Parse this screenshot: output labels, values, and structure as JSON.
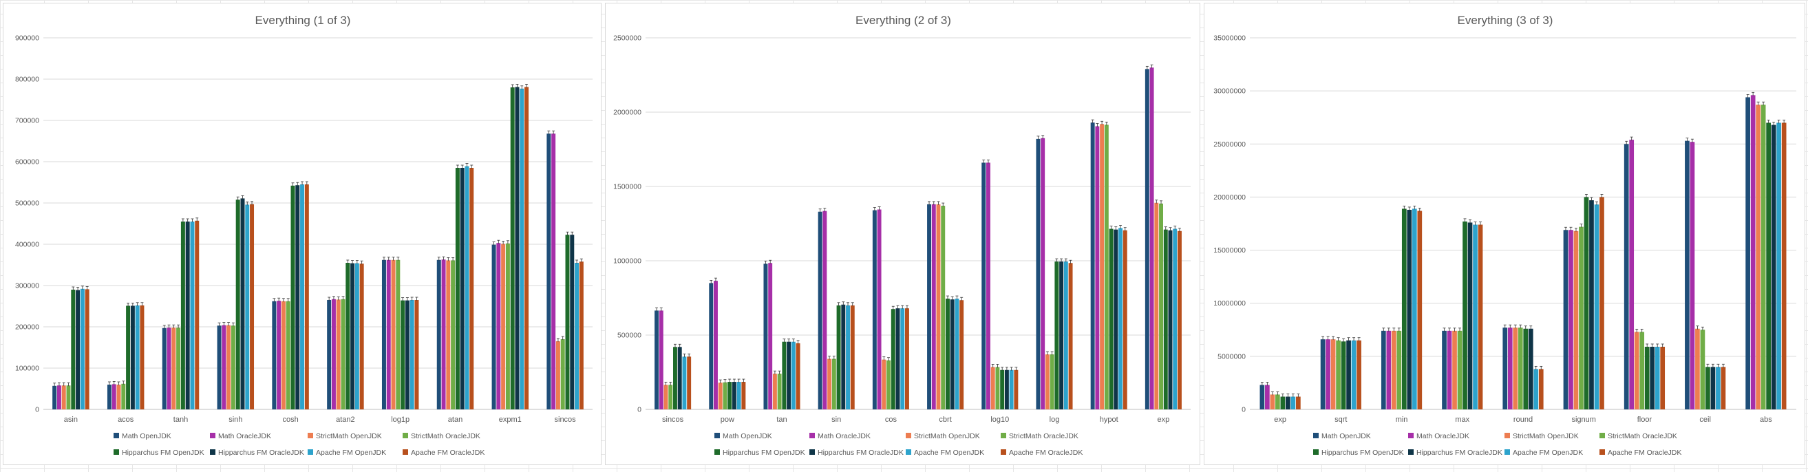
{
  "series_names": [
    "Math OpenJDK",
    "Math OracleJDK",
    "StrictMath OpenJDK",
    "StrictMath OracleJDK",
    "Hipparchus FM OpenJDK",
    "Hipparchus FM OracleJDK",
    "Apache FM OpenJDK",
    "Apache FM OracleJDK"
  ],
  "series_colors": [
    "#1f4e79",
    "#a62fa8",
    "#ed7d51",
    "#70ad47",
    "#1e6b2a",
    "#0f3548",
    "#2da3cc",
    "#b8501d"
  ],
  "chart_data": [
    {
      "type": "bar",
      "title": "Everything (1 of 3)",
      "xlabel": "",
      "ylabel": "",
      "ylim": [
        0,
        900000
      ],
      "yticks": [
        0,
        100000,
        200000,
        300000,
        400000,
        500000,
        600000,
        700000,
        800000,
        900000
      ],
      "grid": true,
      "legend": "bottom",
      "error_bars": true,
      "categories": [
        "asin",
        "acos",
        "tanh",
        "sinh",
        "cosh",
        "atan2",
        "log1p",
        "atan",
        "expm1",
        "sincos"
      ],
      "series": [
        {
          "name": "Math OpenJDK",
          "values": [
            57000,
            60000,
            197000,
            203000,
            262000,
            265000,
            362000,
            362000,
            399000,
            668000
          ]
        },
        {
          "name": "Math OracleJDK",
          "values": [
            58000,
            61000,
            198000,
            204000,
            263000,
            267000,
            362000,
            363000,
            403000,
            668000
          ]
        },
        {
          "name": "StrictMath OpenJDK",
          "values": [
            58000,
            60000,
            198000,
            204000,
            262000,
            266000,
            362000,
            361000,
            401000,
            165000
          ]
        },
        {
          "name": "StrictMath OracleJDK",
          "values": [
            58000,
            62000,
            198000,
            203000,
            262000,
            267000,
            362000,
            361000,
            402000,
            170000
          ]
        },
        {
          "name": "Hipparchus FM OpenJDK",
          "values": [
            290000,
            251000,
            455000,
            508000,
            542000,
            355000,
            264000,
            585000,
            780000,
            423000
          ]
        },
        {
          "name": "Hipparchus FM OracleJDK",
          "values": [
            289000,
            251000,
            455000,
            511000,
            543000,
            354000,
            264000,
            585000,
            781000,
            423000
          ]
        },
        {
          "name": "Apache FM OpenJDK",
          "values": [
            292000,
            252000,
            455000,
            496000,
            545000,
            354000,
            265000,
            589000,
            777000,
            355000
          ]
        },
        {
          "name": "Apache FM OracleJDK",
          "values": [
            291000,
            252000,
            457000,
            497000,
            545000,
            353000,
            265000,
            585000,
            781000,
            358000
          ]
        }
      ]
    },
    {
      "type": "bar",
      "title": "Everything (2 of 3)",
      "xlabel": "",
      "ylabel": "",
      "ylim": [
        0,
        2500000
      ],
      "yticks": [
        0,
        500000,
        1000000,
        1500000,
        2000000,
        2500000
      ],
      "grid": true,
      "legend": "bottom",
      "error_bars": true,
      "categories": [
        "sincos",
        "pow",
        "tan",
        "sin",
        "cos",
        "cbrt",
        "log10",
        "log",
        "hypot",
        "exp"
      ],
      "series": [
        {
          "name": "Math OpenJDK",
          "values": [
            665000,
            850000,
            980000,
            1330000,
            1340000,
            1380000,
            1660000,
            1820000,
            1930000,
            2290000
          ]
        },
        {
          "name": "Math OracleJDK",
          "values": [
            665000,
            865000,
            985000,
            1335000,
            1345000,
            1380000,
            1660000,
            1825000,
            1905000,
            2300000
          ]
        },
        {
          "name": "StrictMath OpenJDK",
          "values": [
            165000,
            180000,
            240000,
            340000,
            335000,
            1380000,
            285000,
            370000,
            1920000,
            1390000
          ]
        },
        {
          "name": "StrictMath OracleJDK",
          "values": [
            165000,
            182000,
            240000,
            340000,
            330000,
            1370000,
            285000,
            370000,
            1915000,
            1385000
          ]
        },
        {
          "name": "Hipparchus FM OpenJDK",
          "values": [
            420000,
            185000,
            455000,
            700000,
            675000,
            745000,
            265000,
            995000,
            1215000,
            1210000
          ]
        },
        {
          "name": "Hipparchus FM OracleJDK",
          "values": [
            420000,
            185000,
            455000,
            705000,
            680000,
            740000,
            265000,
            995000,
            1210000,
            1205000
          ]
        },
        {
          "name": "Apache FM OpenJDK",
          "values": [
            355000,
            185000,
            455000,
            700000,
            680000,
            745000,
            265000,
            995000,
            1220000,
            1215000
          ]
        },
        {
          "name": "Apache FM OracleJDK",
          "values": [
            355000,
            185000,
            445000,
            700000,
            680000,
            735000,
            265000,
            985000,
            1205000,
            1200000
          ]
        }
      ]
    },
    {
      "type": "bar",
      "title": "Everything (3 of 3)",
      "xlabel": "",
      "ylabel": "",
      "ylim": [
        0,
        35000000
      ],
      "yticks": [
        0,
        5000000,
        10000000,
        15000000,
        20000000,
        25000000,
        30000000,
        35000000
      ],
      "grid": true,
      "legend": "bottom",
      "error_bars": true,
      "categories": [
        "exp",
        "sqrt",
        "min",
        "max",
        "round",
        "signum",
        "floor",
        "ceil",
        "abs"
      ],
      "series": [
        {
          "name": "Math OpenJDK",
          "values": [
            2300000,
            6600000,
            7400000,
            7400000,
            7700000,
            16900000,
            25000000,
            25300000,
            29400000
          ]
        },
        {
          "name": "Math OracleJDK",
          "values": [
            2300000,
            6600000,
            7400000,
            7400000,
            7700000,
            16900000,
            25400000,
            25200000,
            29600000
          ]
        },
        {
          "name": "StrictMath OpenJDK",
          "values": [
            1400000,
            6600000,
            7400000,
            7400000,
            7700000,
            16800000,
            7300000,
            7600000,
            28700000
          ]
        },
        {
          "name": "StrictMath OracleJDK",
          "values": [
            1400000,
            6500000,
            7400000,
            7400000,
            7700000,
            17200000,
            7300000,
            7500000,
            28700000
          ]
        },
        {
          "name": "Hipparchus FM OpenJDK",
          "values": [
            1200000,
            6400000,
            18900000,
            17700000,
            7600000,
            20000000,
            5900000,
            4000000,
            27000000
          ]
        },
        {
          "name": "Hipparchus FM OracleJDK",
          "values": [
            1200000,
            6500000,
            18800000,
            17600000,
            7600000,
            19700000,
            5900000,
            4000000,
            26800000
          ]
        },
        {
          "name": "Apache FM OpenJDK",
          "values": [
            1200000,
            6500000,
            18900000,
            17400000,
            3800000,
            19300000,
            5900000,
            4000000,
            27000000
          ]
        },
        {
          "name": "Apache FM OracleJDK",
          "values": [
            1200000,
            6500000,
            18700000,
            17400000,
            3800000,
            20000000,
            5900000,
            4000000,
            27000000
          ]
        }
      ]
    }
  ]
}
